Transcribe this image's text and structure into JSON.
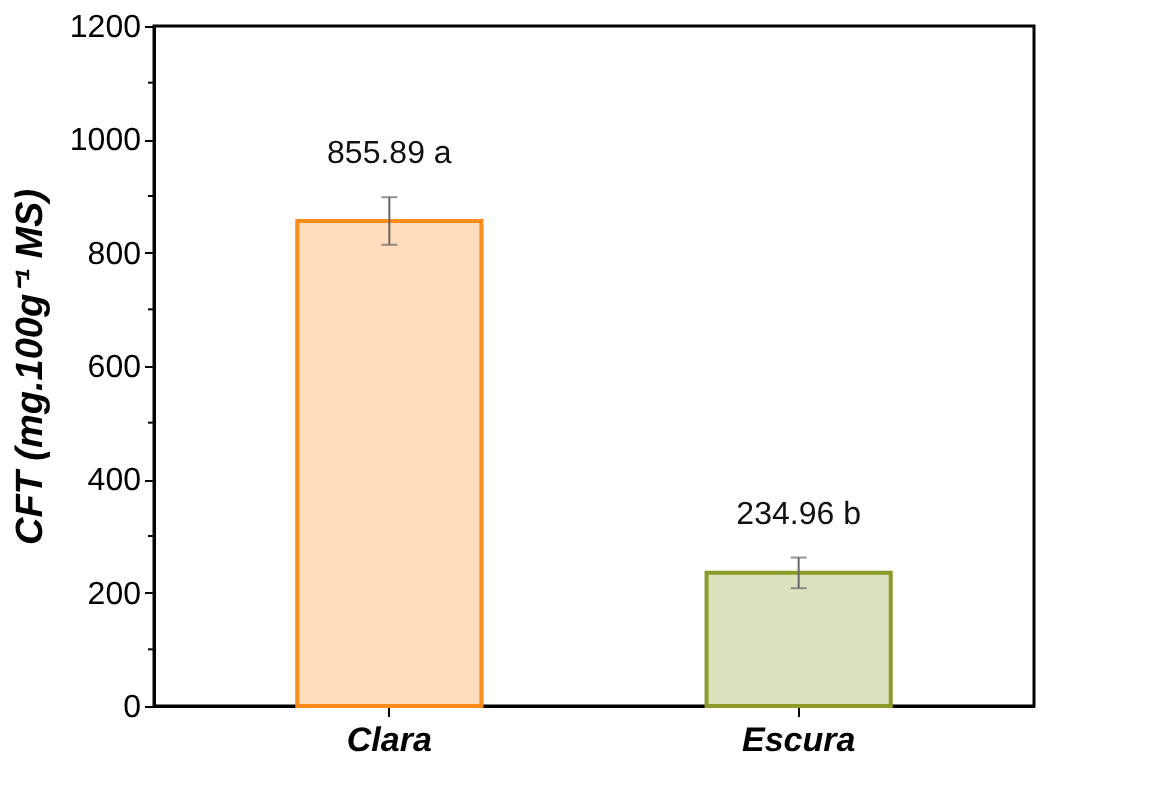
{
  "chart_data": {
    "type": "bar",
    "ylabel": "CFT (mg.100g⁻¹ MS)",
    "categories": [
      "Clara",
      "Escura"
    ],
    "values": [
      855.89,
      234.96
    ],
    "colors": [
      "#ff8c1a",
      "#8c9a2a"
    ],
    "errors": [
      42,
      27
    ],
    "value_labels": [
      "855.89 a",
      "234.96 b"
    ],
    "ylim": [
      0,
      1200
    ],
    "yticks": [
      0,
      {
        "value": 100,
        "label": null
      },
      200,
      {
        "value": 300,
        "label": null
      },
      400,
      {
        "value": 500,
        "label": null
      },
      600,
      {
        "value": 700,
        "label": null
      },
      800,
      {
        "value": 900,
        "label": null
      },
      1000,
      {
        "value": 1100,
        "label": null
      },
      1200
    ],
    "grid": false
  }
}
